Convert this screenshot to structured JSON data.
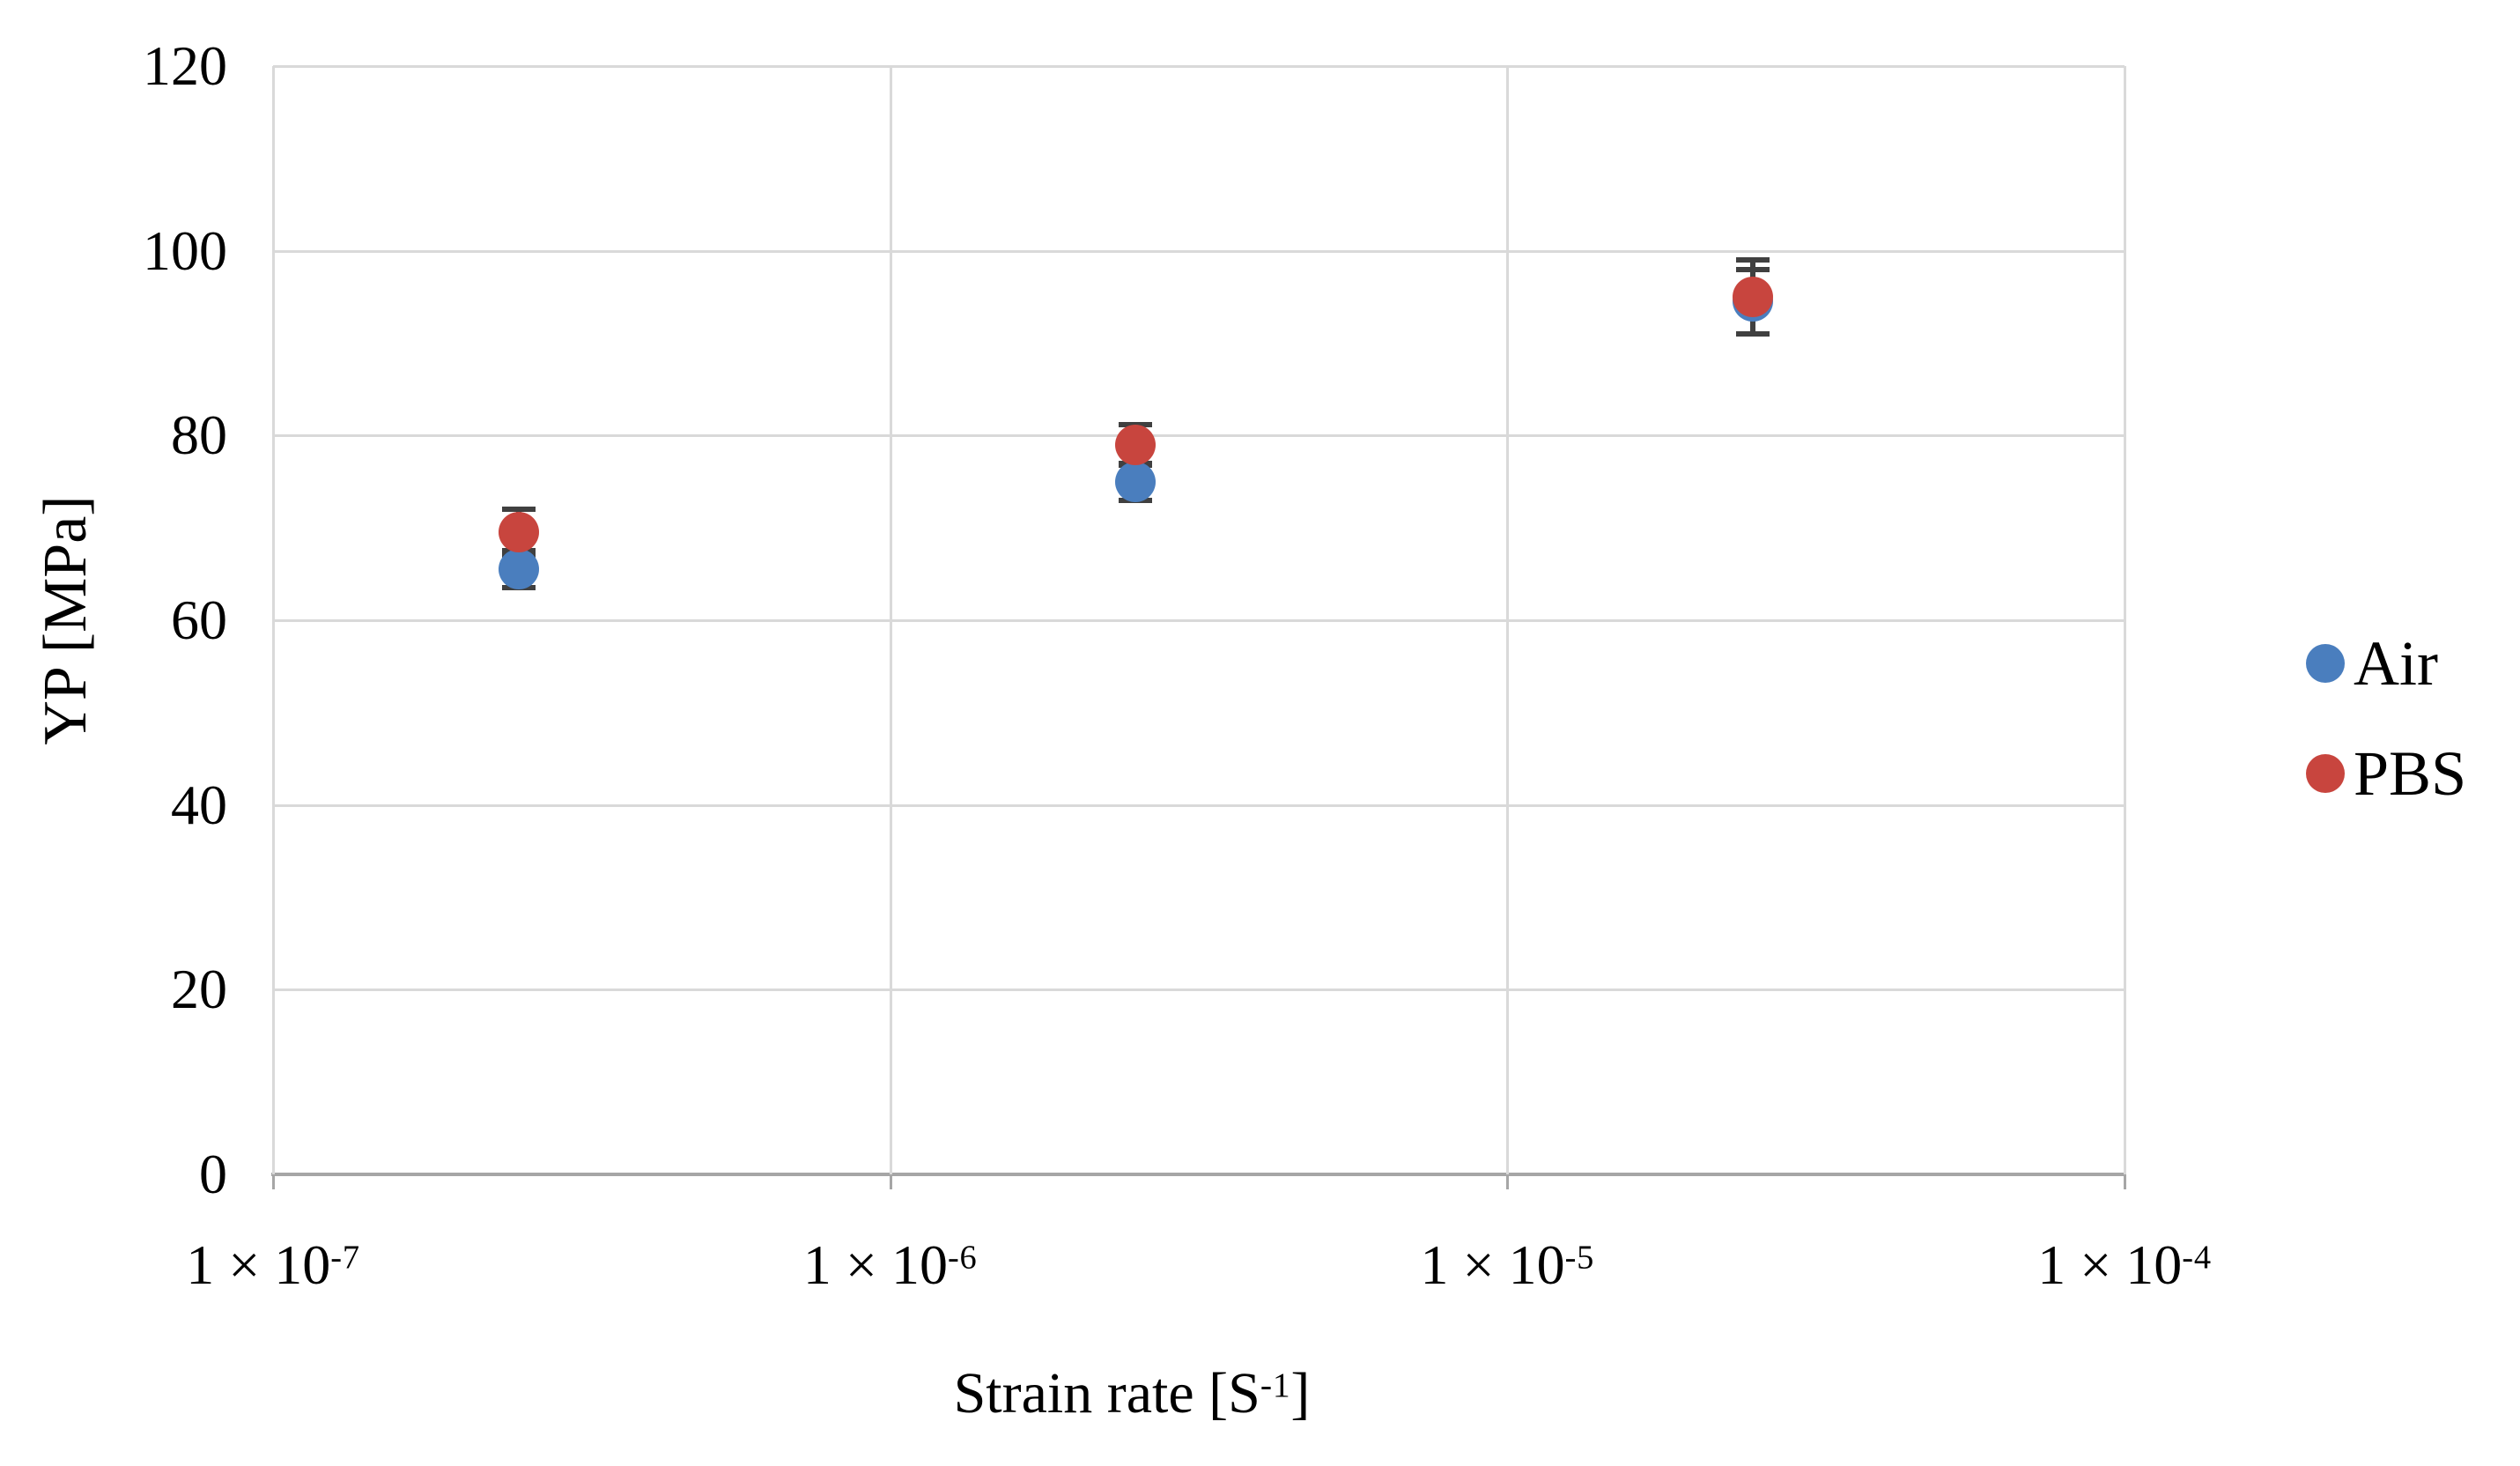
{
  "chart_data": {
    "type": "scatter",
    "x_scale": "log",
    "xlabel_parts": {
      "pre": "Strain rate [S",
      "sup": "-1",
      "post": "]"
    },
    "ylabel": "YP [MPa]",
    "xlim": [
      1e-07,
      0.0001
    ],
    "ylim": [
      0,
      120
    ],
    "x_ticks": [
      {
        "base": "1 × 10",
        "exp": "-7",
        "value": 1e-07
      },
      {
        "base": "1 × 10",
        "exp": "-6",
        "value": 1e-06
      },
      {
        "base": "1 × 10",
        "exp": "-5",
        "value": 1e-05
      },
      {
        "base": "1 × 10",
        "exp": "-4",
        "value": 0.0001
      }
    ],
    "y_ticks": [
      0,
      20,
      40,
      60,
      80,
      100,
      120
    ],
    "grid": true,
    "legend_position": "right-center",
    "series": [
      {
        "name": "Air",
        "color": "#4A7EBE",
        "points": [
          {
            "x": 2.5e-07,
            "y": 65.5,
            "err": 2.0
          },
          {
            "x": 2.5e-06,
            "y": 75.0,
            "err": 2.0
          },
          {
            "x": 2.5e-05,
            "y": 94.5,
            "err": 3.5
          }
        ]
      },
      {
        "name": "PBS",
        "color": "#C8453E",
        "points": [
          {
            "x": 2.5e-07,
            "y": 69.5,
            "err": 2.5
          },
          {
            "x": 2.5e-06,
            "y": 79.0,
            "err": 2.2
          },
          {
            "x": 2.5e-05,
            "y": 95.0,
            "err": 4.0
          }
        ]
      }
    ],
    "colors": {
      "background": "#ffffff",
      "gridline": "#D9D9D9",
      "axis_line": "#A6A6A6",
      "error_bar": "#404040",
      "text": "#000000"
    }
  }
}
